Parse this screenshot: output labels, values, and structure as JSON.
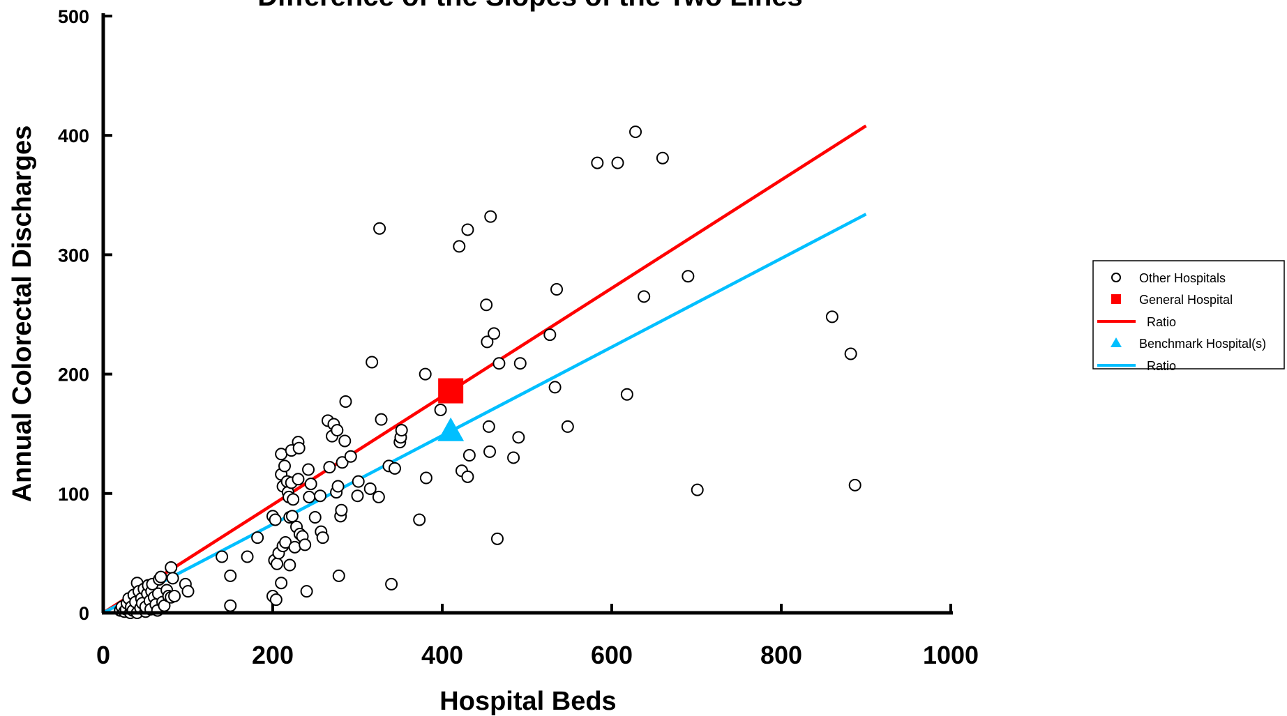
{
  "chart_data": {
    "type": "scatter",
    "title": "Difference of the Slopes of the Two Lines",
    "xlabel": "Hospital Beds",
    "ylabel": "Annual Colorectal Discharges",
    "xlim": [
      0,
      1000
    ],
    "ylim": [
      0,
      500
    ],
    "x_ticks": [
      "0",
      "200",
      "400",
      "600",
      "800",
      "1000"
    ],
    "y_ticks": [
      "0",
      "100",
      "200",
      "300",
      "400",
      "500"
    ],
    "grid": false,
    "legend_position": "right",
    "legend": [
      {
        "label": "Other Hospitals",
        "marker": "open-circle"
      },
      {
        "label": "General Hospital",
        "marker": "square",
        "color": "#ff0000"
      },
      {
        "label": "Ratio",
        "marker": "line",
        "color": "#ff0000"
      },
      {
        "label": "Benchmark Hospital(s)",
        "marker": "triangle",
        "color": "#00bfff"
      },
      {
        "label": "Ratio",
        "marker": "line",
        "color": "#00bfff"
      }
    ],
    "series": [
      {
        "name": "Other Hospitals",
        "marker": "open-circle",
        "points": [
          [
            20,
            2
          ],
          [
            22,
            5
          ],
          [
            25,
            1
          ],
          [
            27,
            3
          ],
          [
            28,
            8
          ],
          [
            30,
            12
          ],
          [
            32,
            0
          ],
          [
            33,
            5
          ],
          [
            35,
            2
          ],
          [
            36,
            15
          ],
          [
            38,
            9
          ],
          [
            40,
            25
          ],
          [
            40,
            0
          ],
          [
            42,
            18
          ],
          [
            44,
            4
          ],
          [
            45,
            12
          ],
          [
            46,
            8
          ],
          [
            48,
            20
          ],
          [
            50,
            1
          ],
          [
            50,
            5
          ],
          [
            52,
            16
          ],
          [
            53,
            23
          ],
          [
            55,
            10
          ],
          [
            56,
            3
          ],
          [
            57,
            18
          ],
          [
            58,
            24
          ],
          [
            60,
            13
          ],
          [
            62,
            7
          ],
          [
            64,
            2
          ],
          [
            65,
            16
          ],
          [
            66,
            28
          ],
          [
            68,
            30
          ],
          [
            70,
            9
          ],
          [
            72,
            6
          ],
          [
            75,
            19
          ],
          [
            77,
            14
          ],
          [
            80,
            38
          ],
          [
            80,
            13
          ],
          [
            82,
            29
          ],
          [
            84,
            14
          ],
          [
            97,
            24
          ],
          [
            100,
            18
          ],
          [
            140,
            47
          ],
          [
            150,
            6
          ],
          [
            150,
            31
          ],
          [
            170,
            47
          ],
          [
            182,
            63
          ],
          [
            200,
            14
          ],
          [
            200,
            81
          ],
          [
            202,
            44
          ],
          [
            203,
            78
          ],
          [
            204,
            11
          ],
          [
            205,
            41
          ],
          [
            207,
            50
          ],
          [
            210,
            25
          ],
          [
            210,
            133
          ],
          [
            210,
            116
          ],
          [
            212,
            56
          ],
          [
            212,
            106
          ],
          [
            214,
            123
          ],
          [
            215,
            59
          ],
          [
            217,
            110
          ],
          [
            218,
            101
          ],
          [
            219,
            97
          ],
          [
            220,
            40
          ],
          [
            220,
            80
          ],
          [
            222,
            136
          ],
          [
            222,
            109
          ],
          [
            223,
            81
          ],
          [
            224,
            95
          ],
          [
            226,
            55
          ],
          [
            228,
            72
          ],
          [
            230,
            143
          ],
          [
            230,
            112
          ],
          [
            231,
            138
          ],
          [
            232,
            66
          ],
          [
            235,
            64
          ],
          [
            238,
            57
          ],
          [
            240,
            18
          ],
          [
            242,
            120
          ],
          [
            243,
            97
          ],
          [
            245,
            108
          ],
          [
            250,
            80
          ],
          [
            256,
            98
          ],
          [
            257,
            68
          ],
          [
            259,
            63
          ],
          [
            265,
            161
          ],
          [
            267,
            122
          ],
          [
            270,
            148
          ],
          [
            272,
            158
          ],
          [
            275,
            101
          ],
          [
            276,
            153
          ],
          [
            277,
            106
          ],
          [
            278,
            31
          ],
          [
            280,
            81
          ],
          [
            281,
            86
          ],
          [
            282,
            126
          ],
          [
            285,
            144
          ],
          [
            286,
            177
          ],
          [
            292,
            131
          ],
          [
            300,
            98
          ],
          [
            301,
            110
          ],
          [
            315,
            104
          ],
          [
            317,
            210
          ],
          [
            325,
            97
          ],
          [
            326,
            322
          ],
          [
            328,
            162
          ],
          [
            337,
            123
          ],
          [
            340,
            24
          ],
          [
            344,
            121
          ],
          [
            350,
            143
          ],
          [
            351,
            147
          ],
          [
            352,
            153
          ],
          [
            373,
            78
          ],
          [
            380,
            200
          ],
          [
            381,
            113
          ],
          [
            398,
            170
          ],
          [
            420,
            307
          ],
          [
            423,
            119
          ],
          [
            430,
            114
          ],
          [
            430,
            321
          ],
          [
            432,
            132
          ],
          [
            452,
            258
          ],
          [
            453,
            227
          ],
          [
            455,
            156
          ],
          [
            456,
            135
          ],
          [
            457,
            332
          ],
          [
            461,
            234
          ],
          [
            465,
            62
          ],
          [
            467,
            209
          ],
          [
            484,
            130
          ],
          [
            490,
            147
          ],
          [
            492,
            209
          ],
          [
            527,
            233
          ],
          [
            533,
            189
          ],
          [
            535,
            271
          ],
          [
            548,
            156
          ],
          [
            583,
            377
          ],
          [
            607,
            377
          ],
          [
            618,
            183
          ],
          [
            628,
            403
          ],
          [
            638,
            265
          ],
          [
            660,
            381
          ],
          [
            690,
            282
          ],
          [
            701,
            103
          ],
          [
            860,
            248
          ],
          [
            882,
            217
          ],
          [
            887,
            107
          ]
        ]
      },
      {
        "name": "General Hospital",
        "marker": "square",
        "color": "#ff0000",
        "points": [
          [
            410,
            186
          ]
        ]
      },
      {
        "name": "Benchmark Hospital(s)",
        "marker": "triangle",
        "color": "#00bfff",
        "points": [
          [
            410,
            152
          ]
        ]
      }
    ],
    "lines": [
      {
        "name": "Ratio",
        "color": "#ff0000",
        "x": [
          0,
          900
        ],
        "y": [
          0,
          408
        ]
      },
      {
        "name": "Ratio",
        "color": "#00bfff",
        "x": [
          0,
          900
        ],
        "y": [
          0,
          334
        ]
      }
    ]
  }
}
